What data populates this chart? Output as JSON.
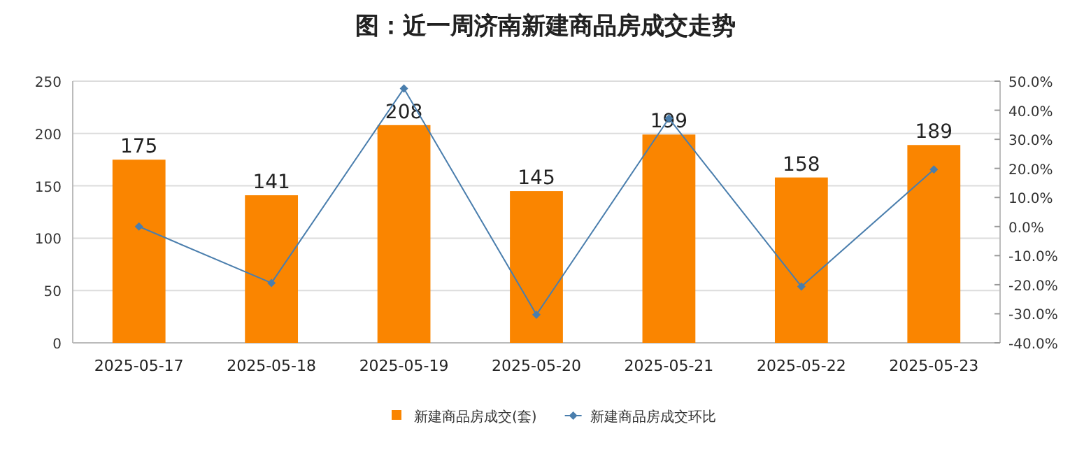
{
  "chart_data": {
    "type": "bar",
    "title": "图：近一周济南新建商品房成交走势",
    "categories": [
      "2025-05-17",
      "2025-05-18",
      "2025-05-19",
      "2025-05-20",
      "2025-05-21",
      "2025-05-22",
      "2025-05-23"
    ],
    "series": [
      {
        "name": "新建商品房成交(套)",
        "color": "#fa8500",
        "values": [
          175,
          141,
          208,
          145,
          199,
          158,
          189
        ],
        "value_labels": [
          "175",
          "141",
          "208",
          "145",
          "199",
          "158",
          "189"
        ]
      },
      {
        "name": "新建商品房成交环比",
        "type": "line",
        "color": "#4a7ead",
        "axis": "y2",
        "marker": "diamond",
        "values": [
          0.0,
          -19.4,
          47.5,
          -30.3,
          37.2,
          -20.6,
          19.6
        ]
      }
    ],
    "ylim": [
      0,
      250
    ],
    "yticks": [
      0,
      50,
      100,
      150,
      200,
      250
    ],
    "y2lim": [
      -40,
      50
    ],
    "y2ticks": [
      {
        "value": -40,
        "label": "-40.0%"
      },
      {
        "value": -30,
        "label": "-30.0%"
      },
      {
        "value": -20,
        "label": "-20.0%"
      },
      {
        "value": -10,
        "label": "-10.0%"
      },
      {
        "value": 0,
        "label": "0.0%"
      },
      {
        "value": 10,
        "label": "10.0%"
      },
      {
        "value": 20,
        "label": "20.0%"
      },
      {
        "value": 30,
        "label": "30.0%"
      },
      {
        "value": 40,
        "label": "40.0%"
      },
      {
        "value": 50,
        "label": "50.0%"
      }
    ],
    "grid": "y",
    "legend": "bottom"
  }
}
